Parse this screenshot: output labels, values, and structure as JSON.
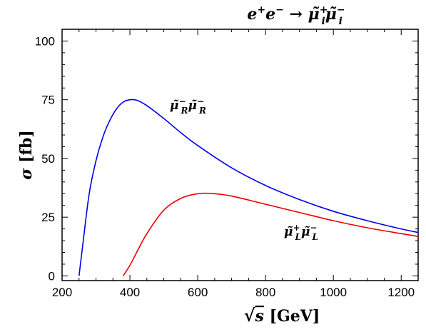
{
  "chart_data": {
    "type": "line",
    "title": "e⁺e⁻ → μ̃ᵢ⁺μ̃ᵢ⁻",
    "xlabel": "√s [GeV]",
    "ylabel": "σ [fb]",
    "xlim": [
      200,
      1250
    ],
    "ylim": [
      -2,
      105
    ],
    "x_ticks": [
      200,
      400,
      600,
      800,
      1000,
      1200
    ],
    "y_ticks": [
      0,
      25,
      50,
      75,
      100
    ],
    "grid": false,
    "series": [
      {
        "name": "μ̃R⁻μ̃R⁻",
        "color": "#0000ee",
        "x": [
          250,
          260,
          280,
          300,
          320,
          340,
          360,
          380,
          400,
          420,
          450,
          500,
          550,
          600,
          700,
          800,
          900,
          1000,
          1100,
          1200,
          1250
        ],
        "y": [
          0,
          12,
          35,
          49,
          59,
          66,
          71,
          74,
          75,
          74.8,
          72.5,
          67,
          61,
          55.5,
          46,
          38.5,
          32.5,
          27.5,
          23.5,
          20,
          18.5
        ]
      },
      {
        "name": "μ̃L⁺μ̃L⁻",
        "color": "#ee0000",
        "x": [
          380,
          400,
          420,
          450,
          500,
          550,
          600,
          650,
          700,
          800,
          900,
          1000,
          1100,
          1200,
          1250
        ],
        "y": [
          0,
          4.5,
          10,
          18,
          28,
          33,
          35,
          35,
          34,
          30.5,
          27,
          23.5,
          20.5,
          18,
          16.8
        ]
      }
    ],
    "annotations": [
      "μ̃R⁻μ̃R⁻",
      "μ̃L⁺μ̃L⁻"
    ]
  }
}
